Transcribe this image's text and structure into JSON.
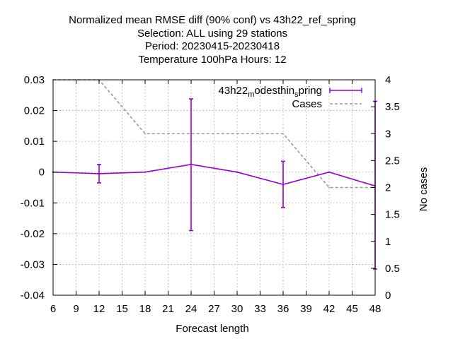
{
  "chart_data": {
    "type": "line",
    "title_lines": [
      "Normalized mean RMSE diff (90% conf) vs 43h22_ref_spring",
      "Selection: ALL using    29 stations",
      "Period: 20230415-20230418",
      "Temperature 100hPa   Hours:  12"
    ],
    "xlabel": "Forecast length",
    "ylabel": "",
    "y2label": "No cases",
    "xlim": [
      6,
      48
    ],
    "ylim": [
      -0.04,
      0.03
    ],
    "y2lim": [
      0,
      4
    ],
    "x_ticks": [
      "6",
      "9",
      "12",
      "15",
      "18",
      "21",
      "24",
      "27",
      "30",
      "33",
      "36",
      "39",
      "42",
      "45",
      "48"
    ],
    "y_ticks": [
      "0.03",
      "0.02",
      "0.01",
      "0",
      "-0.01",
      "-0.02",
      "-0.03",
      "-0.04"
    ],
    "y2_ticks": [
      "4",
      "3.5",
      "3",
      "2.5",
      "2",
      "1.5",
      "1",
      "0.5",
      "0"
    ],
    "grid": true,
    "legend_position": "top-right",
    "series": [
      {
        "name": "43h22_modesthin_spring",
        "color": "#9400d3",
        "axis": "left",
        "x": [
          6,
          12,
          18,
          24,
          30,
          36,
          42,
          48
        ],
        "y": [
          0.0,
          -0.0005,
          0.0,
          0.0025,
          0.0,
          -0.004,
          0.0,
          -0.0045
        ],
        "err_low": [
          null,
          -0.0035,
          null,
          -0.019,
          null,
          -0.0115,
          null,
          -0.0315
        ],
        "err_high": [
          null,
          0.0025,
          null,
          0.0238,
          null,
          0.0035,
          null,
          0.023
        ]
      },
      {
        "name": "Cases",
        "color": "#999999",
        "axis": "right",
        "x": [
          6,
          12,
          18,
          24,
          30,
          36,
          42,
          48
        ],
        "y": [
          4,
          4,
          3,
          3,
          3,
          3,
          2,
          2
        ]
      }
    ]
  }
}
